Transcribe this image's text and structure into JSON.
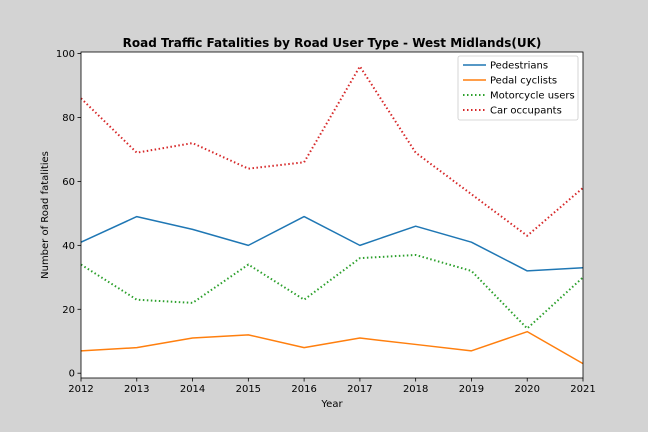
{
  "chart_data": {
    "type": "line",
    "title": "Road Traffic Fatalities by Road User Type - West Midlands(UK)",
    "xlabel": "Year",
    "ylabel": "Number of Road fatalities",
    "x": [
      2012,
      2013,
      2014,
      2015,
      2016,
      2017,
      2018,
      2019,
      2020,
      2021
    ],
    "xlim": [
      2012,
      2021
    ],
    "ylim": [
      -1.5,
      100.5
    ],
    "yticks": [
      0,
      20,
      40,
      60,
      80,
      100
    ],
    "grid": false,
    "legend_position": "top-right",
    "series": [
      {
        "name": "Pedestrians",
        "color": "#1f77b4",
        "style": "solid",
        "values": [
          41,
          49,
          45,
          40,
          49,
          40,
          46,
          41,
          32,
          33
        ]
      },
      {
        "name": "Pedal cyclists",
        "color": "#ff7f0e",
        "style": "solid",
        "values": [
          7,
          8,
          11,
          12,
          8,
          11,
          9,
          7,
          13,
          3
        ]
      },
      {
        "name": "Motorcycle users",
        "color": "#2ca02c",
        "style": "dotted",
        "values": [
          34,
          23,
          22,
          34,
          23,
          36,
          37,
          32,
          14,
          30
        ]
      },
      {
        "name": "Car occupants",
        "color": "#d62728",
        "style": "dotted",
        "values": [
          86,
          69,
          72,
          64,
          66,
          96,
          69,
          56,
          43,
          58
        ]
      }
    ]
  }
}
